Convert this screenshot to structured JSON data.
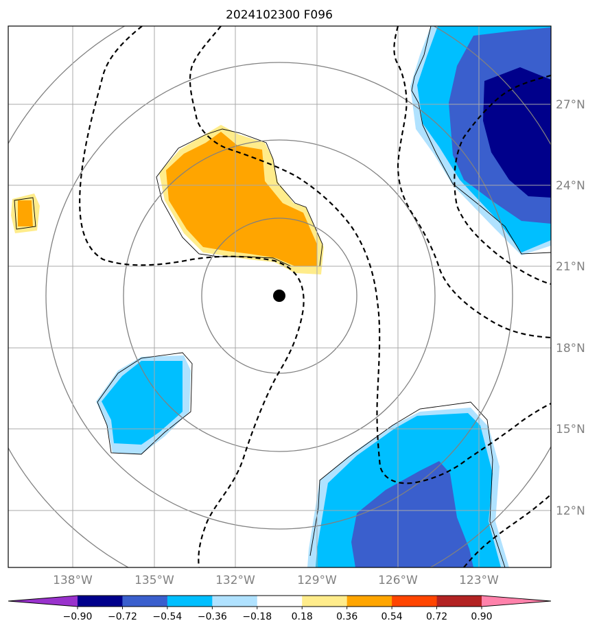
{
  "title": "2024102300 F096",
  "map": {
    "lon_labels": [
      "138°W",
      "135°W",
      "132°W",
      "129°W",
      "126°W",
      "123°W"
    ],
    "lat_labels": [
      "27°N",
      "24°N",
      "21°N",
      "18°N",
      "15°N",
      "12°N"
    ],
    "center_marker": "storm-center-dot",
    "range_rings": 4
  },
  "colorbar": {
    "extend": "both",
    "ticks": [
      "−0.90",
      "−0.72",
      "−0.54",
      "−0.36",
      "−0.18",
      "0.18",
      "0.36",
      "0.54",
      "0.72",
      "0.90"
    ],
    "colors": [
      "#9932cc",
      "#00008b",
      "#3a5fcd",
      "#00bfff",
      "#b0e2ff",
      "#ffffff",
      "#ffec8b",
      "#ffa500",
      "#ff4500",
      "#b22222",
      "#ff82ab"
    ]
  },
  "colors": {
    "grid": "#a9a9a9",
    "rings": "#808080",
    "contour": "#000000",
    "positive_light": "#ffec8b",
    "positive": "#ffa500",
    "negative_light": "#b0e2ff",
    "negative": "#00bfff",
    "negative_strong": "#3a5fcd",
    "negative_max": "#00008b"
  }
}
